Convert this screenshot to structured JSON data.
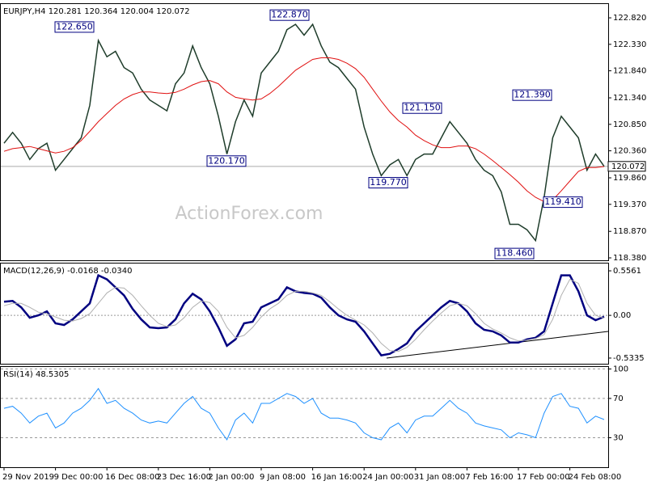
{
  "chart_data": [
    {
      "type": "line",
      "title": "EURJPY,H4 120.281 120.364 120.004 120.072",
      "watermark": "ActionForex.com",
      "categories": [
        "29 Nov 2019",
        null,
        null,
        null,
        null,
        null,
        "9 Dec 00:00",
        null,
        null,
        null,
        null,
        null,
        "16 Dec 08:00",
        null,
        null,
        null,
        null,
        null,
        "23 Dec 16:00",
        null,
        null,
        null,
        null,
        null,
        "2 Jan 00:00",
        null,
        null,
        null,
        null,
        null,
        "9 Jan 08:00",
        null,
        null,
        null,
        null,
        null,
        "16 Jan 16:00",
        null,
        null,
        null,
        null,
        null,
        "24 Jan 00:00",
        null,
        null,
        null,
        null,
        null,
        "31 Jan 08:00",
        null,
        null,
        null,
        null,
        null,
        "7 Feb 16:00",
        null,
        null,
        null,
        null,
        null,
        "17 Feb 00:00",
        null,
        null,
        null,
        null,
        null,
        "24 Feb 08:00",
        null,
        null,
        null,
        null
      ],
      "series": [
        {
          "name": "EURJPY",
          "color": "#1f3d2b",
          "values": [
            120.5,
            120.7,
            120.5,
            120.2,
            120.4,
            120.5,
            120.0,
            120.2,
            120.4,
            120.6,
            121.2,
            122.4,
            122.1,
            122.2,
            121.9,
            121.8,
            121.5,
            121.3,
            121.2,
            121.1,
            121.6,
            121.8,
            122.3,
            121.9,
            121.6,
            121.0,
            120.3,
            120.9,
            121.3,
            121.0,
            121.8,
            122.0,
            122.2,
            122.6,
            122.7,
            122.5,
            122.7,
            122.3,
            122.0,
            121.9,
            121.7,
            121.5,
            120.8,
            120.3,
            119.9,
            120.1,
            120.2,
            119.9,
            120.2,
            120.3,
            120.3,
            120.6,
            120.9,
            120.7,
            120.5,
            120.2,
            120.0,
            119.9,
            119.6,
            119.0,
            119.0,
            118.9,
            118.7,
            119.5,
            120.6,
            121.0,
            120.8,
            120.6,
            120.0,
            120.3,
            120.072
          ]
        },
        {
          "name": "MA",
          "color": "#e01010",
          "values": [
            120.35,
            120.4,
            120.42,
            120.44,
            120.4,
            120.36,
            120.32,
            120.35,
            120.42,
            120.55,
            120.72,
            120.9,
            121.05,
            121.2,
            121.32,
            121.4,
            121.45,
            121.45,
            121.43,
            121.42,
            121.44,
            121.5,
            121.58,
            121.64,
            121.66,
            121.6,
            121.45,
            121.35,
            121.32,
            121.3,
            121.32,
            121.42,
            121.55,
            121.7,
            121.85,
            121.95,
            122.05,
            122.08,
            122.08,
            122.05,
            121.98,
            121.88,
            121.72,
            121.5,
            121.28,
            121.08,
            120.92,
            120.8,
            120.65,
            120.55,
            120.47,
            120.42,
            120.42,
            120.45,
            120.45,
            120.4,
            120.3,
            120.18,
            120.05,
            119.92,
            119.78,
            119.62,
            119.5,
            119.42,
            119.45,
            119.62,
            119.8,
            119.98,
            120.05,
            120.05,
            120.07
          ]
        }
      ],
      "last_price": 120.072,
      "annotations": [
        {
          "label": "122.650",
          "value": 122.65
        },
        {
          "label": "122.870",
          "value": 122.87
        },
        {
          "label": "121.150",
          "value": 121.15
        },
        {
          "label": "121.390",
          "value": 121.39
        },
        {
          "label": "120.170",
          "value": 120.17
        },
        {
          "label": "119.770",
          "value": 119.77
        },
        {
          "label": "119.410",
          "value": 119.41
        },
        {
          "label": "118.460",
          "value": 118.46
        }
      ],
      "ylim": [
        118.335,
        123.075
      ],
      "yticks": [
        {
          "value": 122.82,
          "label": "122.820"
        },
        {
          "value": 122.33,
          "label": "122.330"
        },
        {
          "value": 121.84,
          "label": "121.840"
        },
        {
          "value": 121.34,
          "label": "121.340"
        },
        {
          "value": 120.85,
          "label": "120.850"
        },
        {
          "value": 120.36,
          "label": "120.360"
        },
        {
          "value": 119.86,
          "label": "119.860"
        },
        {
          "value": 119.37,
          "label": "119.370"
        },
        {
          "value": 118.87,
          "label": "118.870"
        },
        {
          "value": 118.38,
          "label": "118.380"
        }
      ],
      "grid": false
    },
    {
      "type": "line",
      "title": "MACD(12,26,9) -0.0168 -0.0340",
      "series": [
        {
          "name": "MACD",
          "color": "#000080",
          "values": [
            0.17,
            0.18,
            0.1,
            -0.03,
            0.0,
            0.05,
            -0.1,
            -0.12,
            -0.05,
            0.05,
            0.15,
            0.5,
            0.45,
            0.35,
            0.25,
            0.08,
            -0.05,
            -0.15,
            -0.16,
            -0.15,
            -0.05,
            0.15,
            0.27,
            0.2,
            0.05,
            -0.15,
            -0.38,
            -0.3,
            -0.1,
            -0.08,
            0.1,
            0.15,
            0.2,
            0.35,
            0.3,
            0.28,
            0.27,
            0.22,
            0.1,
            0.0,
            -0.05,
            -0.08,
            -0.2,
            -0.35,
            -0.5,
            -0.48,
            -0.42,
            -0.35,
            -0.2,
            -0.1,
            0.0,
            0.1,
            0.18,
            0.15,
            0.05,
            -0.1,
            -0.18,
            -0.2,
            -0.25,
            -0.34,
            -0.34,
            -0.3,
            -0.28,
            -0.2,
            0.15,
            0.5,
            0.5,
            0.3,
            0.0,
            -0.06,
            -0.0168
          ]
        },
        {
          "name": "Signal",
          "color": "#b0b0b0",
          "values": [
            0.12,
            0.15,
            0.15,
            0.1,
            0.04,
            0.02,
            -0.02,
            -0.06,
            -0.07,
            -0.04,
            0.02,
            0.15,
            0.28,
            0.35,
            0.34,
            0.25,
            0.12,
            0.0,
            -0.1,
            -0.14,
            -0.12,
            -0.03,
            0.1,
            0.18,
            0.16,
            0.05,
            -0.15,
            -0.28,
            -0.25,
            -0.15,
            -0.02,
            0.08,
            0.15,
            0.25,
            0.3,
            0.3,
            0.28,
            0.25,
            0.17,
            0.08,
            0.0,
            -0.06,
            -0.12,
            -0.22,
            -0.35,
            -0.44,
            -0.45,
            -0.4,
            -0.3,
            -0.18,
            -0.07,
            0.03,
            0.12,
            0.15,
            0.12,
            0.02,
            -0.1,
            -0.17,
            -0.22,
            -0.28,
            -0.32,
            -0.31,
            -0.29,
            -0.24,
            -0.05,
            0.25,
            0.45,
            0.4,
            0.15,
            0.0,
            -0.034
          ]
        }
      ],
      "ylim": [
        -0.6045,
        0.6474
      ],
      "yticks": [
        0.5561,
        {
          "value": 0,
          "label": "0.00"
        },
        -0.5335
      ],
      "grid": false,
      "zero_line": true
    },
    {
      "type": "line",
      "title": "RSI(14) 48.5305",
      "series": [
        {
          "name": "RSI",
          "color": "#1e90ff",
          "values": [
            60,
            62,
            55,
            45,
            52,
            55,
            40,
            45,
            55,
            60,
            68,
            80,
            65,
            68,
            60,
            55,
            48,
            45,
            47,
            45,
            55,
            65,
            72,
            60,
            55,
            40,
            28,
            48,
            55,
            45,
            65,
            65,
            70,
            75,
            72,
            65,
            70,
            55,
            50,
            50,
            48,
            45,
            35,
            30,
            28,
            40,
            45,
            35,
            48,
            52,
            52,
            60,
            68,
            60,
            55,
            45,
            42,
            40,
            38,
            30,
            35,
            33,
            30,
            55,
            72,
            75,
            62,
            60,
            45,
            52,
            48.53
          ]
        }
      ],
      "ylim": [
        0,
        102
      ],
      "yticks": [
        100,
        70,
        30
      ],
      "grid": true
    }
  ]
}
